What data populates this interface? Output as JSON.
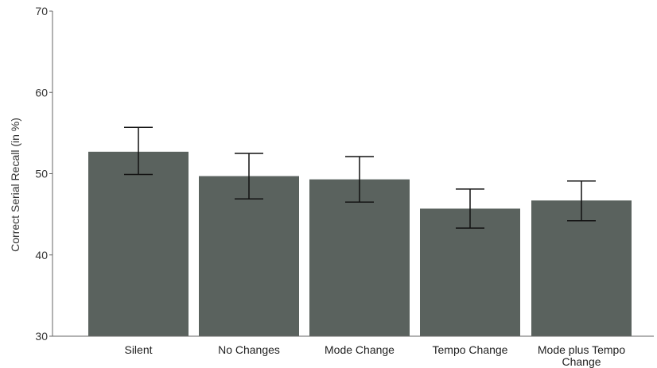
{
  "chart_data": {
    "type": "bar",
    "categories": [
      "Silent",
      "No Changes",
      "Mode Change",
      "Tempo Change",
      "Mode plus Tempo Change"
    ],
    "category_label_lines": [
      [
        "Silent"
      ],
      [
        "No Changes"
      ],
      [
        "Mode Change"
      ],
      [
        "Tempo Change"
      ],
      [
        "Mode plus Tempo",
        "Change"
      ]
    ],
    "values": [
      52.7,
      49.7,
      49.3,
      45.7,
      46.7
    ],
    "error_bars": {
      "lower": [
        49.9,
        46.9,
        46.5,
        43.3,
        44.2
      ],
      "upper": [
        55.7,
        52.5,
        52.1,
        48.1,
        49.1
      ]
    },
    "xlabel": "",
    "ylabel": "Correct Serial Recall (in %)",
    "ylim": [
      30,
      70
    ],
    "yticks": [
      30,
      40,
      50,
      60,
      70
    ],
    "grid": false,
    "bar_color": "#5a625e",
    "error_bar_color": "#111111",
    "axis_color": "#666666"
  }
}
